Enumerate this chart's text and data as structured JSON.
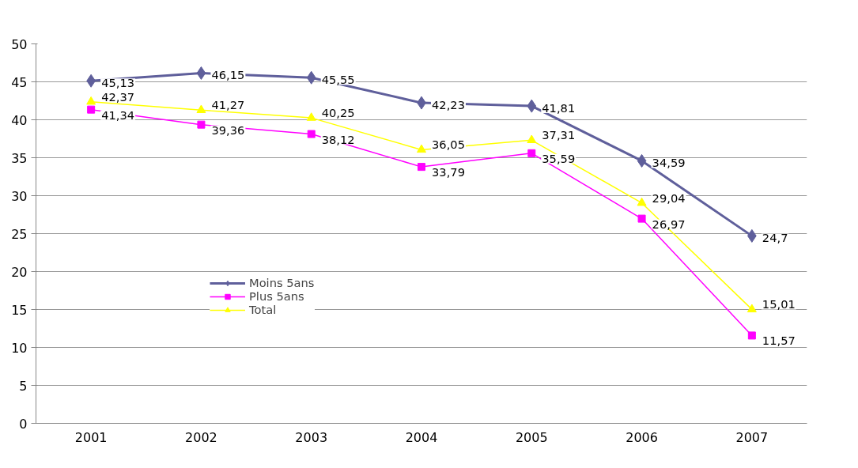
{
  "chart_data": {
    "type": "line",
    "categories": [
      "2001",
      "2002",
      "2003",
      "2004",
      "2005",
      "2006",
      "2007"
    ],
    "series": [
      {
        "name": "Moins 5ans",
        "color": "#5f5f9b",
        "marker": "diamond",
        "values": [
          45.13,
          46.15,
          45.55,
          42.23,
          41.81,
          34.59,
          24.7
        ],
        "value_labels": [
          "45,13",
          "46,15",
          "45,55",
          "42,23",
          "41,81",
          "34,59",
          "24,7"
        ]
      },
      {
        "name": "Plus 5ans",
        "color": "#ff00ff",
        "marker": "square",
        "values": [
          41.34,
          39.36,
          38.12,
          33.79,
          35.59,
          26.97,
          11.57
        ],
        "value_labels": [
          "41,34",
          "39,36",
          "38,12",
          "33,79",
          "35,59",
          "26,97",
          "11,57"
        ]
      },
      {
        "name": "Total",
        "color": "#ffff00",
        "marker": "triangle",
        "values": [
          42.37,
          41.27,
          40.25,
          36.05,
          37.31,
          29.04,
          15.01
        ],
        "value_labels": [
          "42,37",
          "41,27",
          "40,25",
          "36,05",
          "37,31",
          "29,04",
          "15,01"
        ]
      }
    ],
    "ylim": [
      0,
      50
    ],
    "yticks": [
      0,
      5,
      10,
      15,
      20,
      25,
      30,
      35,
      40,
      45,
      50
    ],
    "grid": "y",
    "legend": "center left",
    "line_style": "solid"
  }
}
